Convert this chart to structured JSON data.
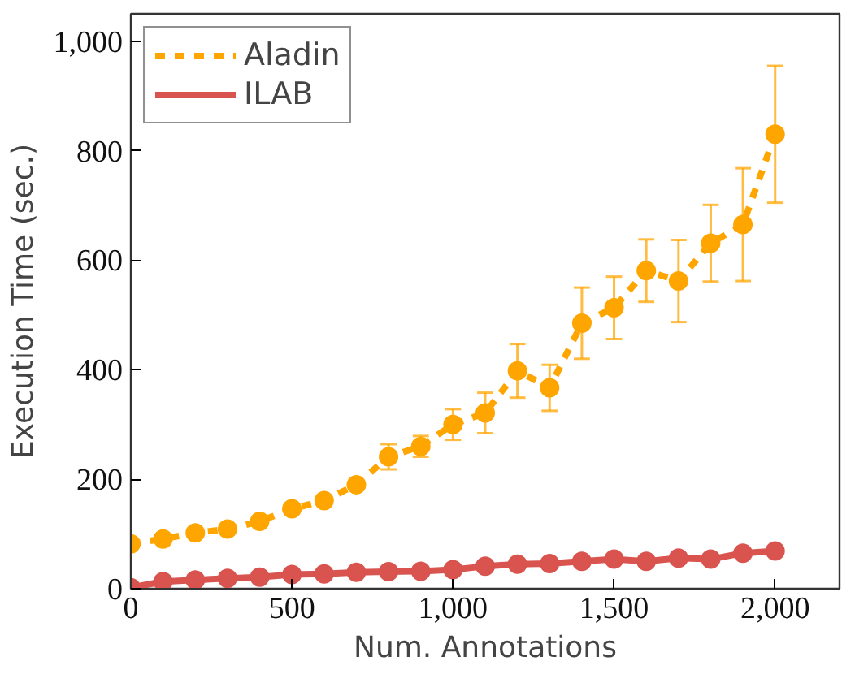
{
  "chart_data": {
    "type": "line",
    "xlabel": "Num. Annotations",
    "ylabel": "Execution Time (sec.)",
    "x": [
      0,
      100,
      200,
      300,
      400,
      500,
      600,
      700,
      800,
      900,
      1000,
      1100,
      1200,
      1300,
      1400,
      1500,
      1600,
      1700,
      1800,
      1900,
      2000
    ],
    "series": [
      {
        "name": "Aladin",
        "color": "#ffa500",
        "line_style": "dashed",
        "values": [
          82,
          91,
          102,
          109,
          123,
          146,
          161,
          190,
          241,
          260,
          300,
          321,
          398,
          367,
          485,
          513,
          581,
          562,
          631,
          665,
          830
        ],
        "errors": [
          null,
          null,
          null,
          null,
          null,
          null,
          null,
          null,
          23,
          19,
          28,
          37,
          49,
          42,
          65,
          57,
          57,
          75,
          70,
          103,
          125
        ]
      },
      {
        "name": "ILAB",
        "color": "#d9534f",
        "line_style": "solid",
        "values": [
          2,
          13,
          16,
          19,
          21,
          26,
          27,
          30,
          31,
          32,
          35,
          41,
          45,
          46,
          50,
          54,
          50,
          56,
          54,
          65,
          69
        ]
      }
    ],
    "marker": "circle",
    "xlim": [
      0,
      2200
    ],
    "ylim": [
      0,
      1050
    ],
    "xticks": [
      {
        "value": 0,
        "label": "0"
      },
      {
        "value": 500,
        "label": "500"
      },
      {
        "value": 1000,
        "label": "1,000"
      },
      {
        "value": 1500,
        "label": "1,500"
      },
      {
        "value": 2000,
        "label": "2,000"
      }
    ],
    "yticks": [
      {
        "value": 0,
        "label": "0"
      },
      {
        "value": 200,
        "label": "200"
      },
      {
        "value": 400,
        "label": "400"
      },
      {
        "value": 600,
        "label": "600"
      },
      {
        "value": 800,
        "label": "800"
      },
      {
        "value": 1000,
        "label": "1,000"
      }
    ],
    "grid": false,
    "legend": "top left"
  }
}
